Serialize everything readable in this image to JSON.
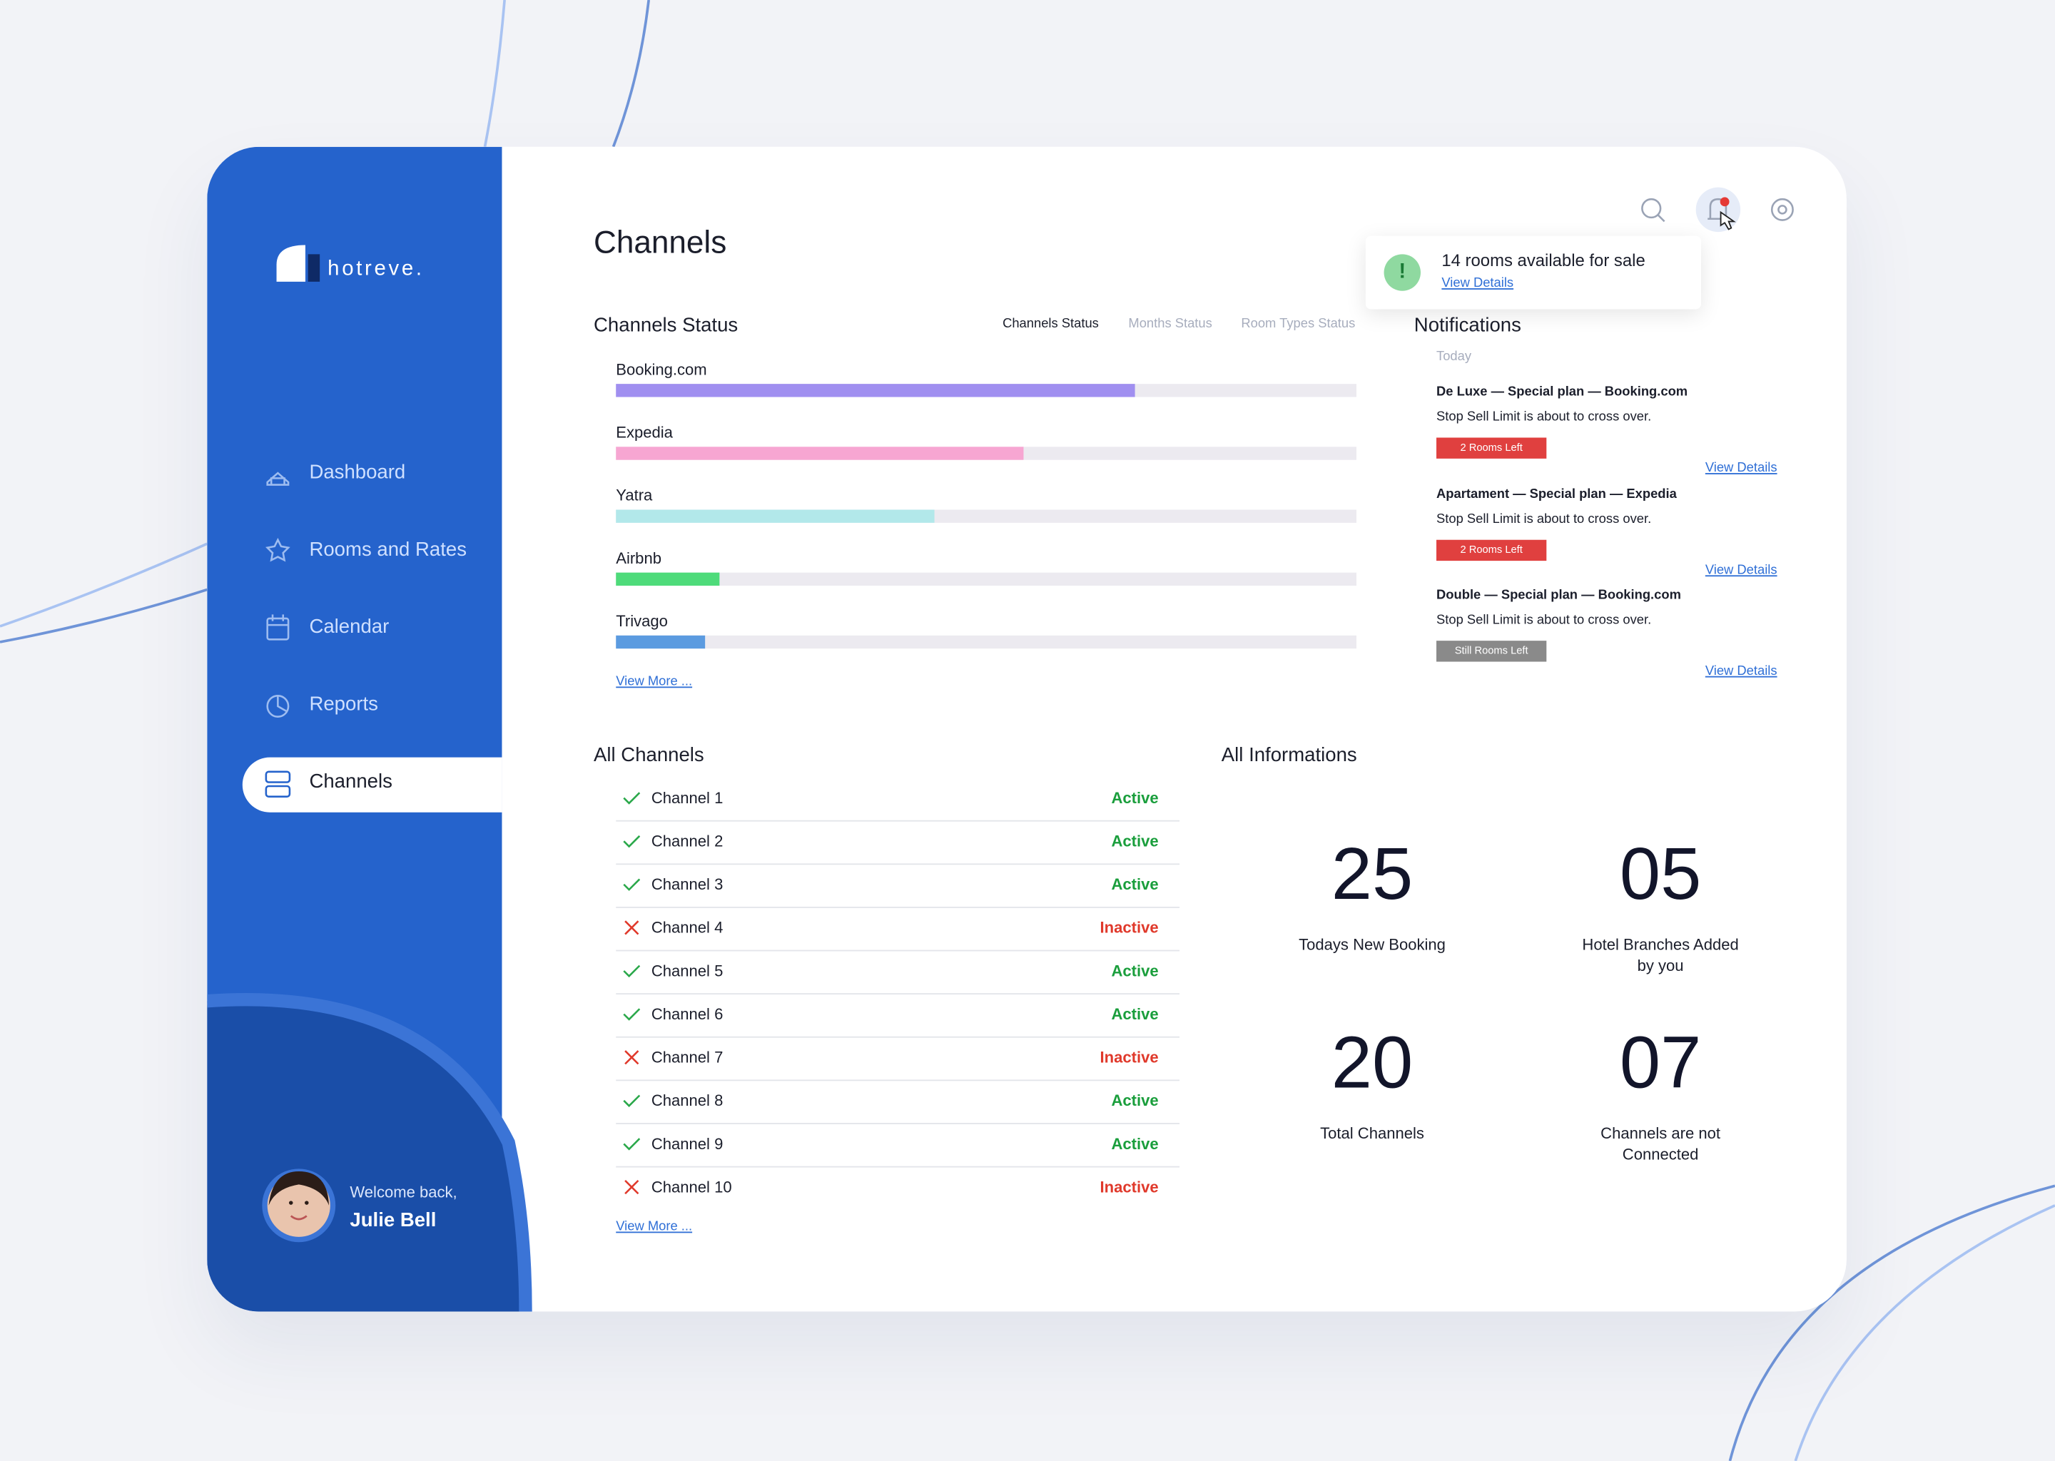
{
  "brand": "hotreve.",
  "nav": [
    "Dashboard",
    "Rooms and Rates",
    "Calendar",
    "Reports",
    "Channels"
  ],
  "user": {
    "greeting": "Welcome back,",
    "name": "Julie Bell"
  },
  "page_title": "Channels",
  "toast": {
    "message": "14 rooms available for sale",
    "link": "View Details"
  },
  "channels_status": {
    "title": "Channels Status",
    "tabs": [
      "Channels Status",
      "Months Status",
      "Room Types Status"
    ],
    "bars": [
      {
        "name": "Booking.com",
        "value": 70,
        "color": "#a08ff0"
      },
      {
        "name": "Expedia",
        "value": 55,
        "color": "#f7a6d2"
      },
      {
        "name": "Yatra",
        "value": 43,
        "color": "#b2e8ea"
      },
      {
        "name": "Airbnb",
        "value": 14,
        "color": "#4edb7a"
      },
      {
        "name": "Trivago",
        "value": 12,
        "color": "#5b9be0"
      }
    ],
    "more": "View More ..."
  },
  "notifications": {
    "title": "Notifications",
    "day": "Today",
    "items": [
      {
        "title": "De Luxe — Special plan — Booking.com",
        "text": "Stop Sell Limit is about to cross over.",
        "badge": "2 Rooms Left",
        "badge_color": "#e0403f",
        "link": "View Details"
      },
      {
        "title": "Apartament — Special plan — Expedia",
        "text": "Stop Sell Limit is about to cross over.",
        "badge": "2 Rooms Left",
        "badge_color": "#e0403f",
        "link": "View Details"
      },
      {
        "title": "Double — Special plan — Booking.com",
        "text": "Stop Sell Limit is about to cross over.",
        "badge": "Still Rooms Left",
        "badge_color": "#8a8a8a",
        "link": "View Details"
      }
    ]
  },
  "all_channels": {
    "title": "All Channels",
    "rows": [
      {
        "name": "Channel 1",
        "status": "Active",
        "active": true
      },
      {
        "name": "Channel 2",
        "status": "Active",
        "active": true
      },
      {
        "name": "Channel 3",
        "status": "Active",
        "active": true
      },
      {
        "name": "Channel 4",
        "status": "Inactive",
        "active": false
      },
      {
        "name": "Channel 5",
        "status": "Active",
        "active": true
      },
      {
        "name": "Channel 6",
        "status": "Active",
        "active": true
      },
      {
        "name": "Channel 7",
        "status": "Inactive",
        "active": false
      },
      {
        "name": "Channel 8",
        "status": "Active",
        "active": true
      },
      {
        "name": "Channel 9",
        "status": "Active",
        "active": true
      },
      {
        "name": "Channel 10",
        "status": "Inactive",
        "active": false
      }
    ],
    "more": "View More ..."
  },
  "all_informations": {
    "title": "All Informations",
    "stats": [
      {
        "value": "25",
        "label": "Todays New Booking"
      },
      {
        "value": "05",
        "label": "Hotel Branches Added by you"
      },
      {
        "value": "20",
        "label": "Total Channels"
      },
      {
        "value": "07",
        "label": "Channels are not Connected"
      }
    ]
  }
}
